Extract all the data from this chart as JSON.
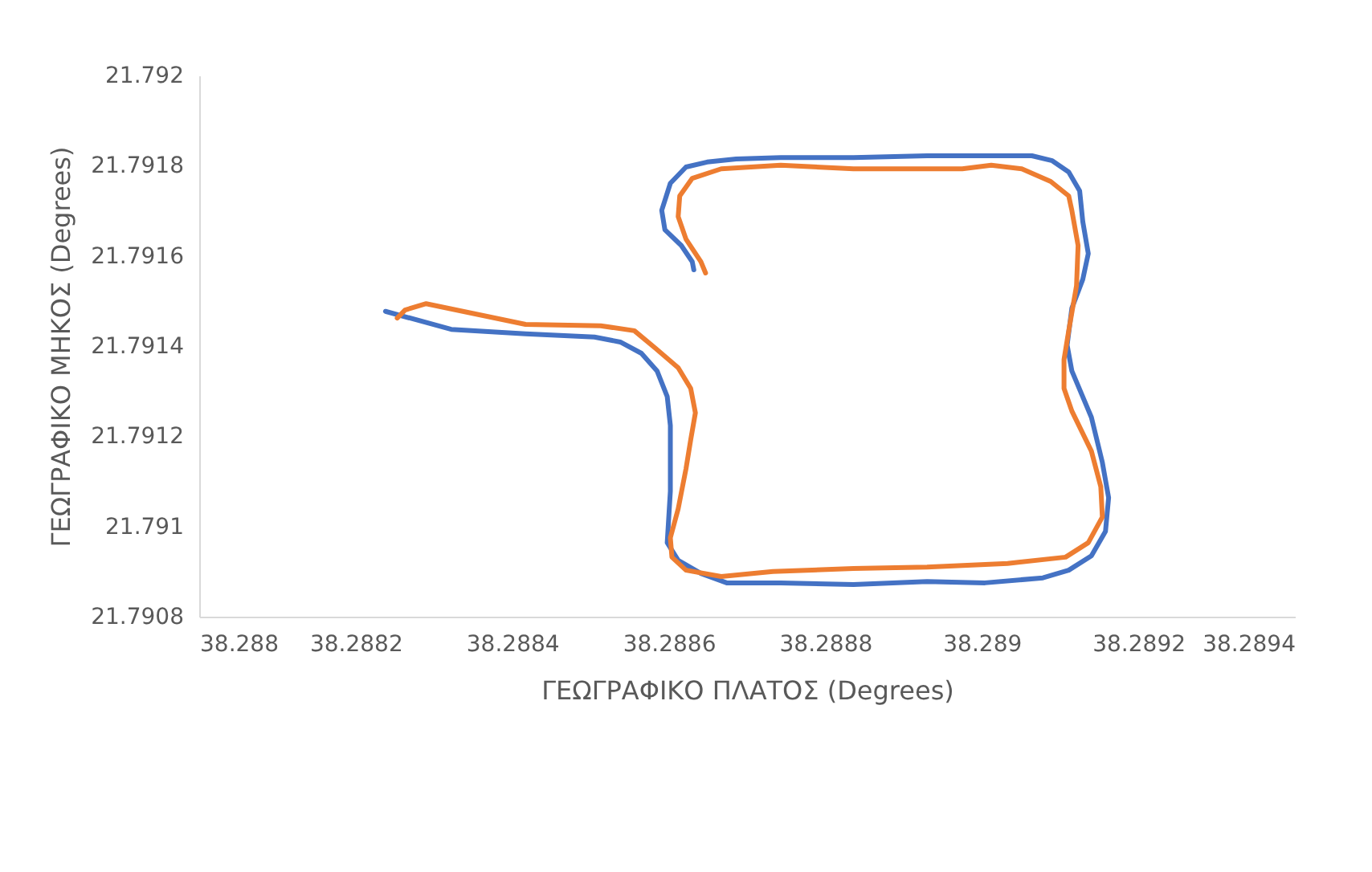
{
  "chart_data": {
    "type": "line",
    "xlabel": "ΓΕΩΓΡΑΦΙΚΟ ΠΛΑΤΟΣ (Degrees)",
    "ylabel": "ΓΕΩΓΡΑΦΙΚΟ ΜΗΚΟΣ (Degrees)",
    "xlim": [
      38.288,
      38.2894
    ],
    "xticks": [
      38.288,
      38.2882,
      38.2884,
      38.2886,
      38.2888,
      38.289,
      38.2892,
      38.2894
    ],
    "ylim": [
      21.7908,
      21.792
    ],
    "yticks": [
      21.7908,
      21.791,
      21.7912,
      21.7914,
      21.7916,
      21.7918,
      21.792
    ],
    "grid": false,
    "legend": false,
    "series": [
      {
        "color": "#4472c4",
        "x": [
          38.288238,
          38.288322,
          38.288417,
          38.288505,
          38.288538,
          38.288565,
          38.288585,
          38.288598,
          38.288602,
          38.288602,
          38.288598,
          38.288612,
          38.288641,
          38.288674,
          38.288743,
          38.288836,
          38.28893,
          38.289004,
          38.289078,
          38.289111,
          38.28914,
          38.289158,
          38.289162,
          38.289154,
          38.28914,
          38.289115,
          38.289109,
          38.289115,
          38.289129,
          38.289136,
          38.289129,
          38.289125,
          38.289111,
          38.28909,
          38.289064,
          38.28893,
          38.288836,
          38.288743,
          38.288686,
          38.288649,
          38.288622,
          38.288602,
          38.288591,
          38.288595,
          38.288616,
          38.28863,
          38.288632
        ],
        "values": [
          21.791477,
          21.791437,
          21.791427,
          21.79142,
          21.791409,
          21.791384,
          21.791345,
          21.791288,
          21.791224,
          21.791078,
          21.790964,
          21.790925,
          21.790896,
          21.790875,
          21.790875,
          21.790871,
          21.790878,
          21.790875,
          21.790886,
          21.790903,
          21.790935,
          21.790989,
          21.791064,
          21.791142,
          21.791242,
          21.791345,
          21.791402,
          21.791484,
          21.791548,
          21.791605,
          21.791676,
          21.791744,
          21.791786,
          21.791811,
          21.791822,
          21.791822,
          21.791818,
          21.791818,
          21.791815,
          21.791808,
          21.791797,
          21.791761,
          21.791701,
          21.791658,
          21.791623,
          21.791587,
          21.791569
        ]
      },
      {
        "color": "#ed7d31",
        "x": [
          38.288253,
          38.288263,
          38.28829,
          38.288417,
          38.288513,
          38.288556,
          38.288583,
          38.288612,
          38.288628,
          38.288634,
          38.288628,
          38.288622,
          38.288612,
          38.288602,
          38.288604,
          38.288622,
          38.288667,
          38.288733,
          38.288836,
          38.28893,
          38.289033,
          38.289107,
          38.289136,
          38.289154,
          38.289152,
          38.28914,
          38.289115,
          38.289105,
          38.289105,
          38.289111,
          38.289121,
          38.289123,
          38.289115,
          38.289111,
          38.289088,
          38.289051,
          38.289012,
          38.288975,
          38.288836,
          38.288743,
          38.288667,
          38.28863,
          38.288614,
          38.288612,
          38.288622,
          38.288641,
          38.288647
        ],
        "values": [
          21.791462,
          21.79148,
          21.791494,
          21.791448,
          21.791445,
          21.791434,
          21.791395,
          21.791352,
          21.791306,
          21.791252,
          21.791192,
          21.791128,
          21.791039,
          21.790975,
          21.790932,
          21.790903,
          21.790889,
          21.7909,
          21.790907,
          21.79091,
          21.790918,
          21.790932,
          21.790964,
          21.791021,
          21.791088,
          21.791167,
          21.791256,
          21.791306,
          21.79137,
          21.791434,
          21.791534,
          21.791623,
          21.791701,
          21.791733,
          21.791765,
          21.791793,
          21.791801,
          21.791793,
          21.791793,
          21.791801,
          21.791793,
          21.791772,
          21.791733,
          21.791687,
          21.791637,
          21.791587,
          21.791562
        ]
      }
    ]
  }
}
